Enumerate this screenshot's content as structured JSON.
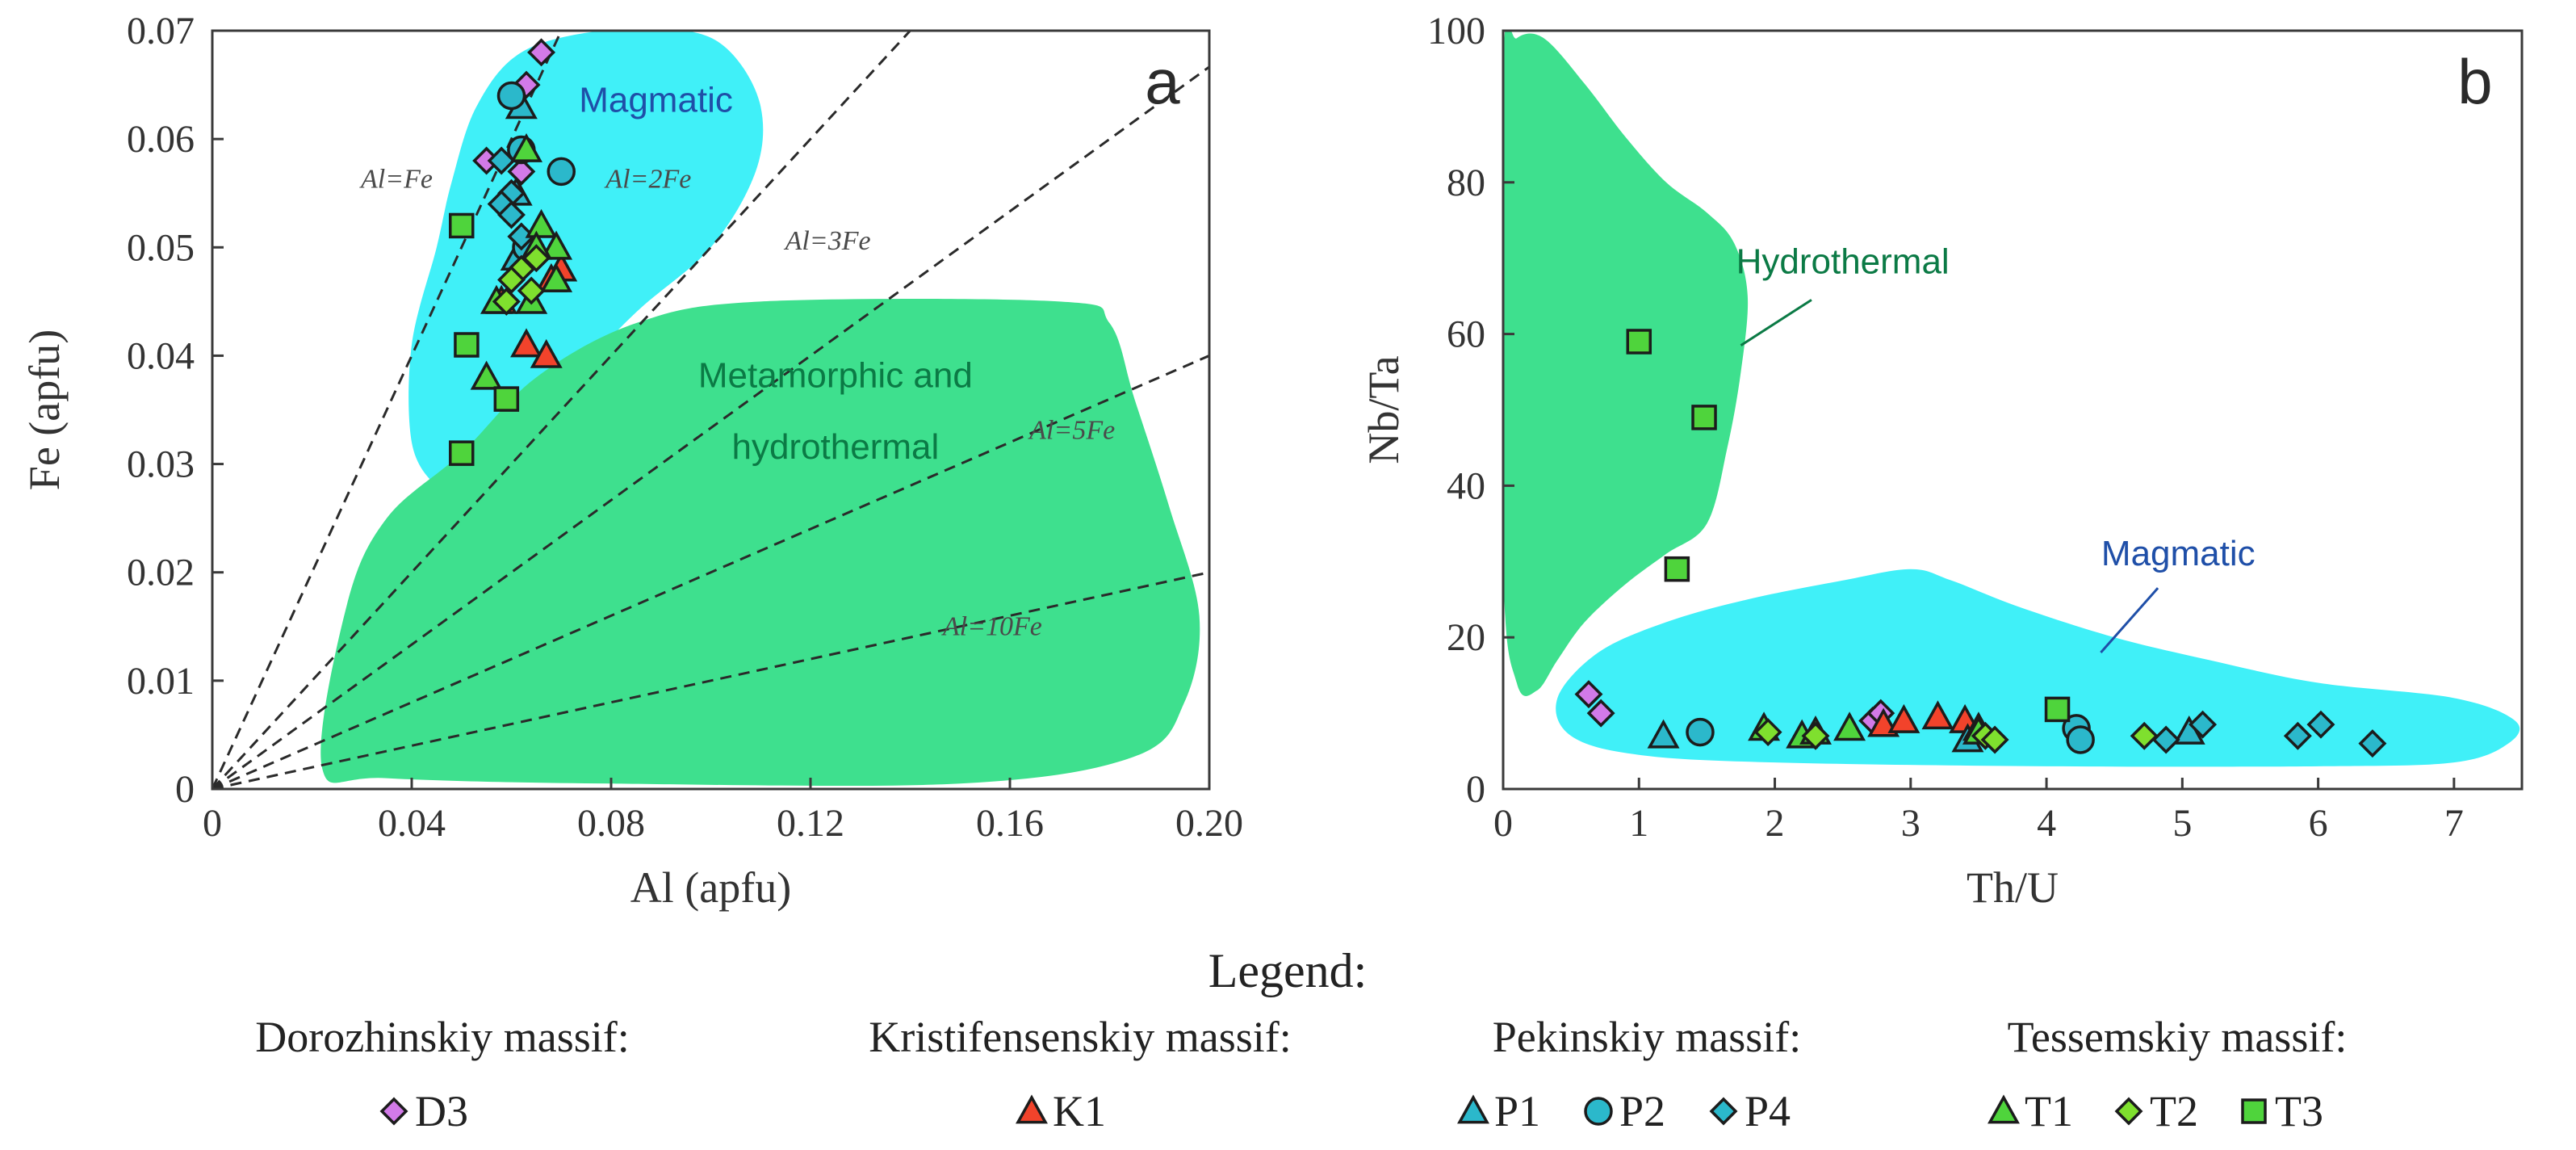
{
  "legend": {
    "title": "Legend:",
    "groups": [
      {
        "title": "Dorozhinskiy massif:",
        "items": [
          {
            "label": "D3",
            "marker": "diamond",
            "color": "#d27ae8"
          }
        ]
      },
      {
        "title": "Kristifensenskiy massif:",
        "items": [
          {
            "label": "K1",
            "marker": "triangle",
            "color": "#f2432b"
          }
        ]
      },
      {
        "title": "Pekinskiy massif:",
        "items": [
          {
            "label": "P1",
            "marker": "triangle",
            "color": "#2bb8cb"
          },
          {
            "label": "P2",
            "marker": "circle",
            "color": "#2bb8cb"
          },
          {
            "label": "P4",
            "marker": "diamond",
            "color": "#2bb8cb"
          }
        ]
      },
      {
        "title": "Tessemskiy massif:",
        "items": [
          {
            "label": "T1",
            "marker": "triangle",
            "color": "#4fd43c"
          },
          {
            "label": "T2",
            "marker": "diamond",
            "color": "#7fe02e"
          },
          {
            "label": "T3",
            "marker": "square",
            "color": "#4fd43c"
          }
        ]
      }
    ]
  },
  "chart_data": [
    {
      "type": "scatter",
      "panel_label": "a",
      "xlabel": "Al (apfu)",
      "ylabel": "Fe (apfu)",
      "xlim": [
        0,
        0.2
      ],
      "ylim": [
        0,
        0.07
      ],
      "xticks": [
        0,
        0.04,
        0.08,
        0.12,
        0.16,
        0.2
      ],
      "xtick_labels": [
        "0",
        "0.04",
        "0.08",
        "0.12",
        "0.16",
        "0.20"
      ],
      "yticks": [
        0,
        0.01,
        0.02,
        0.03,
        0.04,
        0.05,
        0.06,
        0.07
      ],
      "ytick_labels": [
        "0",
        "0.01",
        "0.02",
        "0.03",
        "0.04",
        "0.05",
        "0.06",
        "0.07"
      ],
      "fields": [
        {
          "name": "Magmatic",
          "label": "Magmatic",
          "color": "#40f0f8",
          "label_color": "#1f4fa8",
          "polygon": [
            [
              0.04,
              0.032
            ],
            [
              0.04,
              0.041
            ],
            [
              0.045,
              0.05
            ],
            [
              0.048,
              0.056
            ],
            [
              0.053,
              0.063
            ],
            [
              0.062,
              0.068
            ],
            [
              0.078,
              0.07
            ],
            [
              0.095,
              0.07
            ],
            [
              0.104,
              0.068
            ],
            [
              0.11,
              0.063
            ],
            [
              0.109,
              0.057
            ],
            [
              0.1,
              0.05
            ],
            [
              0.085,
              0.044
            ],
            [
              0.07,
              0.037
            ],
            [
              0.058,
              0.032
            ],
            [
              0.05,
              0.028
            ],
            [
              0.045,
              0.028
            ]
          ]
        },
        {
          "name": "Metamorphic and hydrothermal",
          "label_lines": [
            "Metamorphic and",
            "hydrothermal"
          ],
          "color": "#3ee08e",
          "label_color": "#0b7a45",
          "polygon": [
            [
              0.022,
              0.002
            ],
            [
              0.027,
              0.017
            ],
            [
              0.035,
              0.025
            ],
            [
              0.05,
              0.031
            ],
            [
              0.065,
              0.038
            ],
            [
              0.085,
              0.043
            ],
            [
              0.11,
              0.045
            ],
            [
              0.17,
              0.045
            ],
            [
              0.18,
              0.043
            ],
            [
              0.185,
              0.036
            ],
            [
              0.192,
              0.026
            ],
            [
              0.198,
              0.016
            ],
            [
              0.195,
              0.008
            ],
            [
              0.185,
              0.003
            ],
            [
              0.15,
              0.0005
            ],
            [
              0.08,
              0.0005
            ],
            [
              0.035,
              0.001
            ]
          ]
        }
      ],
      "ratio_lines": [
        {
          "label": "Al=Fe",
          "slope": 1,
          "label_at": [
            0.037,
            0.0555
          ]
        },
        {
          "label": "Al=2Fe",
          "slope": 0.5,
          "label_at": [
            0.0875,
            0.0555
          ]
        },
        {
          "label": "Al=3Fe",
          "slope": 0.3333,
          "label_at": [
            0.1235,
            0.0498
          ]
        },
        {
          "label": "Al=5Fe",
          "slope": 0.2,
          "label_at": [
            0.1725,
            0.0323
          ]
        },
        {
          "label": "Al=10Fe",
          "slope": 0.1,
          "label_at": [
            0.1565,
            0.0142
          ]
        }
      ],
      "series": [
        {
          "name": "D3",
          "marker": "diamond",
          "color": "#d27ae8",
          "points": [
            [
              0.066,
              0.068
            ],
            [
              0.063,
              0.065
            ],
            [
              0.055,
              0.058
            ],
            [
              0.062,
              0.057
            ]
          ]
        },
        {
          "name": "K1",
          "marker": "triangle",
          "color": "#f2432b",
          "points": [
            [
              0.07,
              0.048
            ],
            [
              0.068,
              0.047
            ],
            [
              0.063,
              0.041
            ],
            [
              0.067,
              0.04
            ],
            [
              0.058,
              0.045
            ]
          ]
        },
        {
          "name": "P1",
          "marker": "triangle",
          "color": "#2bb8cb",
          "points": [
            [
              0.062,
              0.063
            ],
            [
              0.061,
              0.055
            ],
            [
              0.061,
              0.049
            ]
          ]
        },
        {
          "name": "P2",
          "marker": "circle",
          "color": "#2bb8cb",
          "points": [
            [
              0.06,
              0.064
            ],
            [
              0.062,
              0.059
            ],
            [
              0.07,
              0.057
            ],
            [
              0.063,
              0.05
            ]
          ]
        },
        {
          "name": "P4",
          "marker": "diamond",
          "color": "#2bb8cb",
          "points": [
            [
              0.058,
              0.058
            ],
            [
              0.06,
              0.055
            ],
            [
              0.058,
              0.054
            ],
            [
              0.06,
              0.053
            ],
            [
              0.062,
              0.051
            ]
          ]
        },
        {
          "name": "T1",
          "marker": "triangle",
          "color": "#4fd43c",
          "points": [
            [
              0.063,
              0.059
            ],
            [
              0.066,
              0.052
            ],
            [
              0.069,
              0.05
            ],
            [
              0.065,
              0.05
            ],
            [
              0.069,
              0.047
            ],
            [
              0.057,
              0.045
            ],
            [
              0.064,
              0.045
            ],
            [
              0.055,
              0.038
            ]
          ]
        },
        {
          "name": "T2",
          "marker": "diamond",
          "color": "#7fe02e",
          "points": [
            [
              0.065,
              0.049
            ],
            [
              0.062,
              0.048
            ],
            [
              0.06,
              0.047
            ],
            [
              0.064,
              0.046
            ],
            [
              0.059,
              0.045
            ]
          ]
        },
        {
          "name": "T3",
          "marker": "square",
          "color": "#4fd43c",
          "points": [
            [
              0.05,
              0.052
            ],
            [
              0.051,
              0.041
            ],
            [
              0.059,
              0.036
            ],
            [
              0.05,
              0.031
            ]
          ]
        }
      ]
    },
    {
      "type": "scatter",
      "panel_label": "b",
      "xlabel": "Th/U",
      "ylabel": "Nb/Ta",
      "xlim": [
        0,
        7.5
      ],
      "ylim": [
        0,
        100
      ],
      "xticks": [
        0,
        1,
        2,
        3,
        4,
        5,
        6,
        7
      ],
      "xtick_labels": [
        "0",
        "1",
        "2",
        "3",
        "4",
        "5",
        "6",
        "7"
      ],
      "yticks": [
        0,
        20,
        40,
        60,
        80,
        100
      ],
      "ytick_labels": [
        "0",
        "20",
        "40",
        "60",
        "80",
        "100"
      ],
      "fields": [
        {
          "name": "Hydrothermal",
          "label": "Hydrothermal",
          "color": "#3ee08e",
          "label_color": "#0b7a45",
          "label_at": [
            2.5,
            68
          ],
          "leader": [
            [
              2.27,
              64.5
            ],
            [
              1.75,
              58.5
            ]
          ],
          "polygon": [
            [
              0.1,
              99
            ],
            [
              0.0,
              95
            ],
            [
              0.0,
              30
            ],
            [
              0.1,
              14
            ],
            [
              0.25,
              13
            ],
            [
              0.4,
              17
            ],
            [
              0.6,
              22
            ],
            [
              0.9,
              27
            ],
            [
              1.2,
              31
            ],
            [
              1.5,
              35
            ],
            [
              1.65,
              45
            ],
            [
              1.75,
              55
            ],
            [
              1.8,
              65
            ],
            [
              1.7,
              72
            ],
            [
              1.5,
              76
            ],
            [
              1.2,
              80
            ],
            [
              0.9,
              86
            ],
            [
              0.6,
              93
            ],
            [
              0.3,
              99
            ]
          ]
        },
        {
          "name": "Magmatic",
          "label": "Magmatic",
          "color": "#40f0f8",
          "label_color": "#1f4fa8",
          "label_at": [
            4.97,
            29.5
          ],
          "leader": [
            [
              4.82,
              26.5
            ],
            [
              4.4,
              18
            ]
          ],
          "polygon": [
            [
              0.4,
              12
            ],
            [
              0.7,
              18
            ],
            [
              1.2,
              22
            ],
            [
              1.8,
              25
            ],
            [
              2.5,
              27.5
            ],
            [
              3.0,
              29
            ],
            [
              3.3,
              27.5
            ],
            [
              3.8,
              24
            ],
            [
              4.5,
              20
            ],
            [
              5.2,
              17
            ],
            [
              6.0,
              14
            ],
            [
              7.0,
              12
            ],
            [
              7.45,
              9
            ],
            [
              7.4,
              6
            ],
            [
              7.0,
              3.5
            ],
            [
              6.0,
              3
            ],
            [
              4.0,
              3
            ],
            [
              2.0,
              3.5
            ],
            [
              1.0,
              4.5
            ],
            [
              0.5,
              7
            ]
          ]
        }
      ],
      "series": [
        {
          "name": "D3",
          "marker": "diamond",
          "color": "#d27ae8",
          "points": [
            [
              0.63,
              12.5
            ],
            [
              0.72,
              10
            ],
            [
              2.72,
              9
            ],
            [
              2.78,
              10
            ]
          ]
        },
        {
          "name": "K1",
          "marker": "triangle",
          "color": "#f2432b",
          "points": [
            [
              2.8,
              8.5
            ],
            [
              2.95,
              9
            ],
            [
              3.2,
              9.5
            ],
            [
              3.4,
              9
            ]
          ]
        },
        {
          "name": "P1",
          "marker": "triangle",
          "color": "#2bb8cb",
          "points": [
            [
              1.18,
              7
            ],
            [
              3.42,
              6.5
            ],
            [
              5.05,
              7.5
            ],
            [
              3.5,
              8
            ]
          ]
        },
        {
          "name": "P2",
          "marker": "circle",
          "color": "#2bb8cb",
          "points": [
            [
              1.45,
              7.5
            ],
            [
              4.22,
              8
            ],
            [
              4.25,
              6.5
            ]
          ]
        },
        {
          "name": "P4",
          "marker": "diamond",
          "color": "#2bb8cb",
          "points": [
            [
              4.88,
              6.5
            ],
            [
              5.15,
              8.5
            ],
            [
              5.85,
              7
            ],
            [
              6.02,
              8.5
            ],
            [
              6.4,
              6
            ]
          ]
        },
        {
          "name": "T1",
          "marker": "triangle",
          "color": "#4fd43c",
          "points": [
            [
              1.92,
              8
            ],
            [
              2.2,
              7
            ],
            [
              2.3,
              7.5
            ],
            [
              2.55,
              8
            ],
            [
              3.5,
              7.5
            ]
          ]
        },
        {
          "name": "T2",
          "marker": "diamond",
          "color": "#7fe02e",
          "points": [
            [
              1.95,
              7.5
            ],
            [
              3.55,
              7
            ],
            [
              3.62,
              6.5
            ],
            [
              4.72,
              7
            ],
            [
              2.3,
              7
            ]
          ]
        },
        {
          "name": "T3",
          "marker": "square",
          "color": "#4fd43c",
          "points": [
            [
              1.0,
              59
            ],
            [
              1.48,
              49
            ],
            [
              1.28,
              29
            ],
            [
              4.08,
              10.5
            ]
          ]
        }
      ]
    }
  ]
}
